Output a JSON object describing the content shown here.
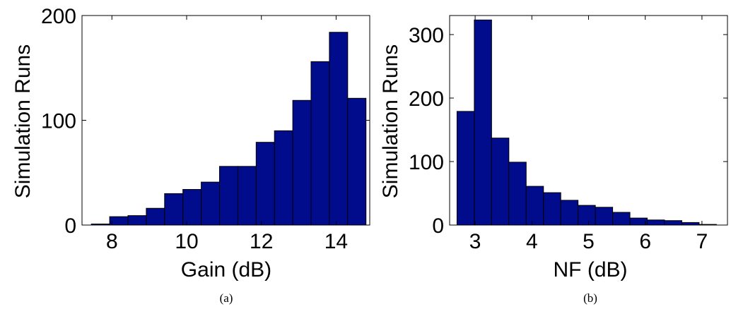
{
  "chart_data": [
    {
      "type": "bar",
      "caption": "(a)",
      "xlabel": "Gain (dB)",
      "ylabel": "Simulation Runs",
      "xlim": [
        7.2,
        14.9
      ],
      "ylim": [
        0,
        200
      ],
      "xticks": [
        8,
        10,
        12,
        14
      ],
      "yticks": [
        0,
        100,
        200
      ],
      "bin_edges": [
        7.45,
        7.94,
        8.43,
        8.92,
        9.41,
        9.9,
        10.39,
        10.88,
        11.37,
        11.86,
        12.35,
        12.84,
        13.33,
        13.82,
        14.31,
        14.8
      ],
      "values": [
        1,
        8,
        9,
        16,
        30,
        34,
        41,
        56,
        56,
        79,
        90,
        119,
        156,
        184,
        121
      ],
      "bar_color": "#000c8c"
    },
    {
      "type": "bar",
      "caption": "(b)",
      "xlabel": "NF (dB)",
      "ylabel": "Simulation Runs",
      "xlim": [
        2.55,
        7.45
      ],
      "ylim": [
        0,
        330
      ],
      "xticks": [
        3,
        4,
        5,
        6,
        7
      ],
      "yticks": [
        0,
        100,
        200,
        300
      ],
      "bin_edges": [
        2.68,
        2.985,
        3.29,
        3.595,
        3.9,
        4.205,
        4.51,
        4.815,
        5.12,
        5.425,
        5.73,
        6.035,
        6.34,
        6.645,
        6.95,
        7.255
      ],
      "values": [
        179,
        323,
        137,
        99,
        61,
        51,
        39,
        31,
        28,
        20,
        11,
        8,
        7,
        4,
        1
      ],
      "bar_color": "#000c8c"
    }
  ]
}
